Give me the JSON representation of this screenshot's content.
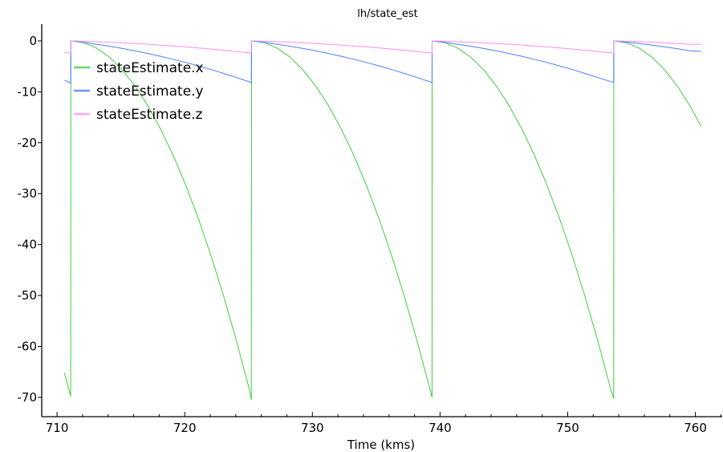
{
  "chart_data": {
    "type": "line",
    "title": "lh/state_est",
    "xlabel": "Time (kms)",
    "ylabel": "",
    "xlim": [
      708.8,
      762.1
    ],
    "ylim": [
      -73.8,
      3.3
    ],
    "xticks": [
      710,
      720,
      730,
      740,
      750,
      760
    ],
    "xminor_step": 2,
    "yticks": [
      0,
      -10,
      -20,
      -30,
      -40,
      -50,
      -60,
      -70
    ],
    "grid": false,
    "legend_placement": "top-left",
    "x": [
      710.57,
      711.07,
      711.08,
      712.08,
      713.08,
      714.08,
      715.08,
      716.08,
      717.08,
      718.08,
      719.08,
      720.08,
      721.08,
      722.08,
      723.08,
      724.08,
      725.08,
      725.22,
      725.23,
      726.23,
      727.23,
      728.23,
      729.23,
      730.23,
      731.23,
      732.23,
      733.23,
      734.23,
      735.23,
      736.23,
      737.23,
      738.23,
      739.23,
      739.37,
      739.38,
      740.38,
      741.38,
      742.38,
      743.38,
      744.38,
      745.38,
      746.38,
      747.38,
      748.38,
      749.38,
      750.38,
      751.38,
      752.38,
      753.38,
      753.6,
      753.61,
      754.61,
      755.61,
      756.61,
      757.61,
      758.61,
      759.61,
      760.44
    ],
    "series": [
      {
        "name": "stateEstimate.x",
        "color": "#3fcc3f",
        "values": [
          -65.2,
          -69.8,
          0,
          -0.35,
          -1.4,
          -3.15,
          -5.6,
          -8.75,
          -12.6,
          -17.15,
          -22.4,
          -28.35,
          -35,
          -42.35,
          -50.4,
          -59.15,
          -68.6,
          -70.5,
          0,
          -0.35,
          -1.4,
          -3.15,
          -5.6,
          -8.75,
          -12.6,
          -17.15,
          -22.4,
          -28.35,
          -35,
          -42.35,
          -50.4,
          -59.15,
          -68.6,
          -70.0,
          0,
          -0.35,
          -1.4,
          -3.15,
          -5.6,
          -8.75,
          -12.6,
          -17.15,
          -22.4,
          -28.35,
          -35,
          -42.35,
          -50.4,
          -59.15,
          -68.6,
          -70.2,
          0,
          -0.36,
          -1.44,
          -3.23,
          -5.74,
          -8.98,
          -12.9,
          -16.8
        ]
      },
      {
        "name": "stateEstimate.y",
        "color": "#4a7dff",
        "values": [
          -7.7,
          -8.3,
          0,
          -0.3,
          -0.65,
          -1.04,
          -1.46,
          -1.94,
          -2.45,
          -3.0,
          -3.6,
          -4.24,
          -4.92,
          -5.64,
          -6.41,
          -7.22,
          -8.06,
          -8.2,
          0,
          -0.3,
          -0.65,
          -1.04,
          -1.46,
          -1.94,
          -2.45,
          -3.0,
          -3.6,
          -4.24,
          -4.92,
          -5.64,
          -6.41,
          -7.22,
          -8.06,
          -8.2,
          0,
          -0.3,
          -0.65,
          -1.04,
          -1.46,
          -1.94,
          -2.45,
          -3.0,
          -3.6,
          -4.24,
          -4.92,
          -5.64,
          -6.41,
          -7.22,
          -8.0,
          -8.1,
          0,
          -0.24,
          -0.52,
          -0.83,
          -1.17,
          -1.55,
          -1.96,
          -2.05
        ]
      },
      {
        "name": "stateEstimate.z",
        "color": "#ff8cf0",
        "values": [
          -2.3,
          -2.4,
          0,
          -0.07,
          -0.16,
          -0.26,
          -0.38,
          -0.51,
          -0.65,
          -0.81,
          -0.99,
          -1.18,
          -1.38,
          -1.61,
          -1.84,
          -2.1,
          -2.36,
          -2.4,
          0,
          -0.07,
          -0.16,
          -0.26,
          -0.38,
          -0.51,
          -0.65,
          -0.81,
          -0.99,
          -1.18,
          -1.38,
          -1.61,
          -1.84,
          -2.1,
          -2.36,
          -2.4,
          0,
          -0.07,
          -0.16,
          -0.26,
          -0.38,
          -0.51,
          -0.65,
          -0.81,
          -0.99,
          -1.18,
          -1.38,
          -1.61,
          -1.84,
          -2.1,
          -2.36,
          -2.4,
          0,
          -0.07,
          -0.16,
          -0.26,
          -0.38,
          -0.51,
          -0.65,
          -0.7
        ]
      }
    ]
  }
}
